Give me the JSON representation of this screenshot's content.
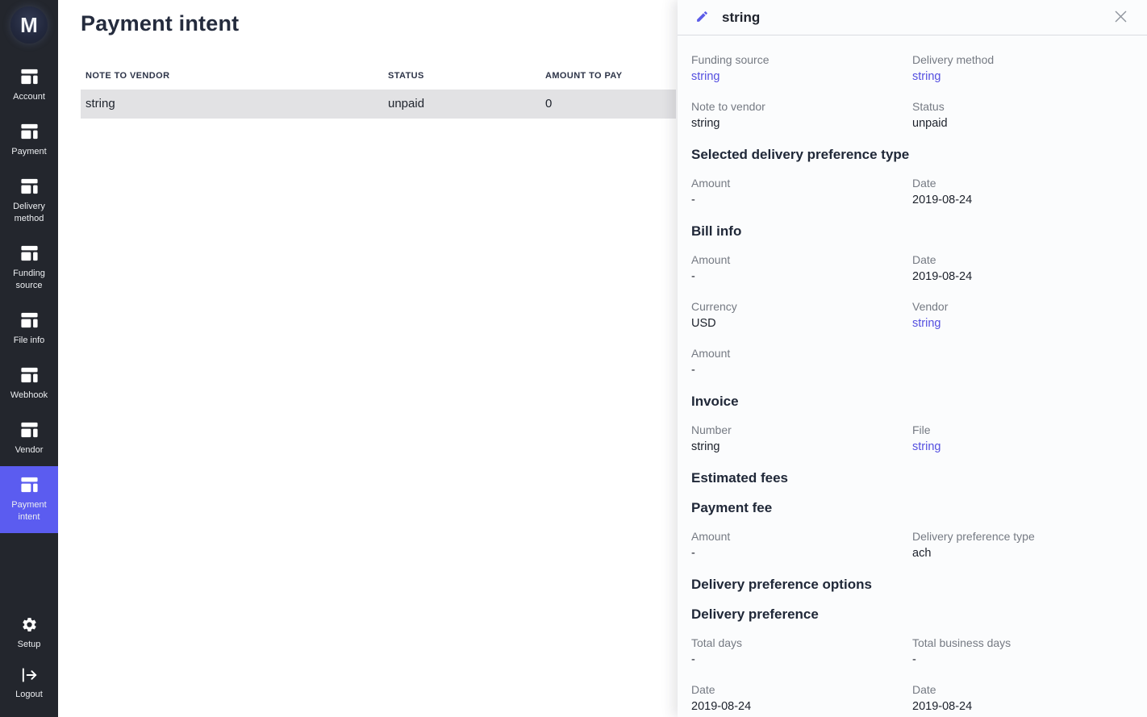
{
  "colors": {
    "accent": "#5b5cf0",
    "link": "#544fe0",
    "sidebar_bg": "#23262d",
    "selected_row_bg": "#e2e2e4"
  },
  "sidebar": {
    "logo_text": "M",
    "items": [
      {
        "label": "Account",
        "icon": "table-icon",
        "active": false
      },
      {
        "label": "Payment",
        "icon": "table-icon",
        "active": false
      },
      {
        "label": "Delivery method",
        "icon": "table-icon",
        "active": false
      },
      {
        "label": "Funding source",
        "icon": "table-icon",
        "active": false
      },
      {
        "label": "File info",
        "icon": "table-icon",
        "active": false
      },
      {
        "label": "Webhook",
        "icon": "table-icon",
        "active": false
      },
      {
        "label": "Vendor",
        "icon": "table-icon",
        "active": false
      },
      {
        "label": "Payment intent",
        "icon": "table-icon",
        "active": true
      }
    ],
    "footer_items": [
      {
        "label": "Setup",
        "icon": "gear-icon"
      },
      {
        "label": "Logout",
        "icon": "logout-icon"
      }
    ]
  },
  "main": {
    "title": "Payment intent",
    "table": {
      "columns": [
        "Note to vendor",
        "Status",
        "Amount to pay"
      ],
      "rows": [
        {
          "cells": [
            "string",
            "unpaid",
            "0"
          ],
          "selected": true
        }
      ]
    }
  },
  "panel": {
    "title": "string",
    "icons": [
      "edit-icon",
      "close-icon"
    ],
    "blocks": [
      {
        "type": "fields",
        "fields": [
          {
            "label": "Funding source",
            "value": "string",
            "link": true
          },
          {
            "label": "Delivery method",
            "value": "string",
            "link": true
          }
        ]
      },
      {
        "type": "fields",
        "fields": [
          {
            "label": "Note to vendor",
            "value": "string",
            "link": false
          },
          {
            "label": "Status",
            "value": "unpaid",
            "link": false
          }
        ]
      },
      {
        "type": "section",
        "text": "Selected delivery preference type"
      },
      {
        "type": "fields",
        "fields": [
          {
            "label": "Amount",
            "value": "-",
            "link": false
          },
          {
            "label": "Date",
            "value": "2019-08-24",
            "link": false
          }
        ]
      },
      {
        "type": "section",
        "text": "Bill info"
      },
      {
        "type": "fields",
        "fields": [
          {
            "label": "Amount",
            "value": "-",
            "link": false
          },
          {
            "label": "Date",
            "value": "2019-08-24",
            "link": false
          }
        ]
      },
      {
        "type": "fields",
        "fields": [
          {
            "label": "Currency",
            "value": "USD",
            "link": false
          },
          {
            "label": "Vendor",
            "value": "string",
            "link": true
          }
        ]
      },
      {
        "type": "fields",
        "fields": [
          {
            "label": "Amount",
            "value": "-",
            "link": false
          }
        ]
      },
      {
        "type": "section",
        "text": "Invoice"
      },
      {
        "type": "fields",
        "fields": [
          {
            "label": "Number",
            "value": "string",
            "link": false
          },
          {
            "label": "File",
            "value": "string",
            "link": true
          }
        ]
      },
      {
        "type": "section",
        "text": "Estimated fees"
      },
      {
        "type": "section",
        "text": "Payment fee"
      },
      {
        "type": "fields",
        "fields": [
          {
            "label": "Amount",
            "value": "-",
            "link": false
          },
          {
            "label": "Delivery preference type",
            "value": "ach",
            "link": false
          }
        ]
      },
      {
        "type": "section",
        "text": "Delivery preference options"
      },
      {
        "type": "section",
        "text": "Delivery preference"
      },
      {
        "type": "fields",
        "fields": [
          {
            "label": "Total days",
            "value": "-",
            "link": false
          },
          {
            "label": "Total business days",
            "value": "-",
            "link": false
          }
        ]
      },
      {
        "type": "fields",
        "fields": [
          {
            "label": "Date",
            "value": "2019-08-24",
            "link": false
          },
          {
            "label": "Date",
            "value": "2019-08-24",
            "link": false
          }
        ]
      }
    ]
  }
}
